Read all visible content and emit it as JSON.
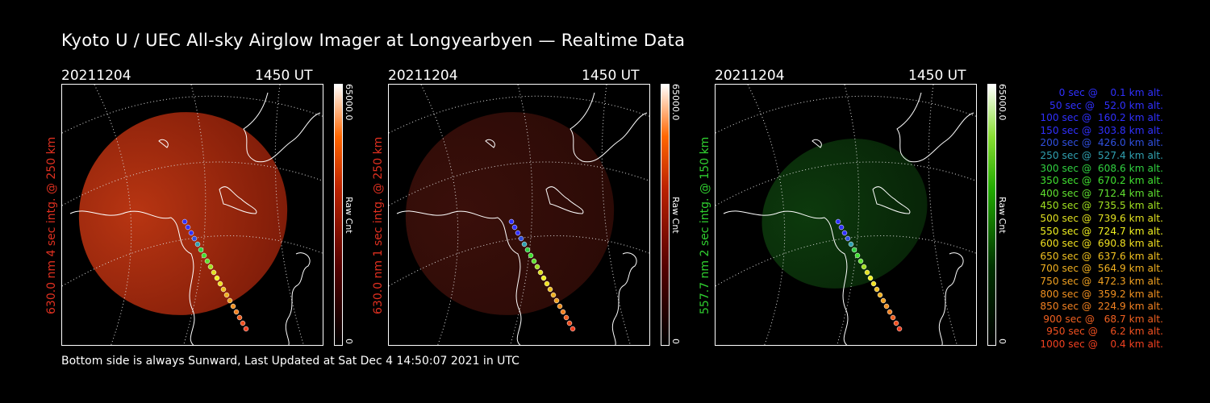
{
  "title": "Kyoto U / UEC All-sky Airglow Imager at Longyearbyen — Realtime Data",
  "footer": "Bottom side is always Sunward, Last Updated at Sat Dec  4 14:50:07 2021 in UTC",
  "panels": [
    {
      "date": "20211204",
      "time": "1450 UT",
      "side_label": "630.0 nm 4 sec intg. @ 250 km",
      "side_color": "#e03020",
      "cbar_top": "65000.0",
      "cbar_unit": "Raw Cnt",
      "cbar_bottom": "0",
      "scheme": "red",
      "intensity": "bright"
    },
    {
      "date": "20211204",
      "time": "1450 UT",
      "side_label": "630.0 nm 1 sec intg. @ 250 km",
      "side_color": "#e03020",
      "cbar_top": "65000.0",
      "cbar_unit": "Raw Cnt",
      "cbar_bottom": "0",
      "scheme": "red",
      "intensity": "dim"
    },
    {
      "date": "20211204",
      "time": "1450 UT",
      "side_label": "557.7 nm 2 sec intg. @ 150 km",
      "side_color": "#30d030",
      "cbar_top": "65000.0",
      "cbar_unit": "Raw Cnt",
      "cbar_bottom": "0",
      "scheme": "green",
      "intensity": "dim"
    }
  ],
  "legend": [
    {
      "text": "   0 sec @    0.1 km alt.",
      "color": "#3030ff"
    },
    {
      "text": "  50 sec @   52.0 km alt.",
      "color": "#3030ff"
    },
    {
      "text": " 100 sec @  160.2 km alt.",
      "color": "#3030ff"
    },
    {
      "text": " 150 sec @  303.8 km alt.",
      "color": "#3030ff"
    },
    {
      "text": " 200 sec @  426.0 km alt.",
      "color": "#3050e0"
    },
    {
      "text": " 250 sec @  527.4 km alt.",
      "color": "#30a0b0"
    },
    {
      "text": " 300 sec @  608.6 km alt.",
      "color": "#30d040"
    },
    {
      "text": " 350 sec @  670.2 km alt.",
      "color": "#40e030"
    },
    {
      "text": " 400 sec @  712.4 km alt.",
      "color": "#60e030"
    },
    {
      "text": " 450 sec @  735.5 km alt.",
      "color": "#a0e020"
    },
    {
      "text": " 500 sec @  739.6 km alt.",
      "color": "#e0e020"
    },
    {
      "text": " 550 sec @  724.7 km alt.",
      "color": "#f0f020"
    },
    {
      "text": " 600 sec @  690.8 km alt.",
      "color": "#f0e020"
    },
    {
      "text": " 650 sec @  637.6 km alt.",
      "color": "#f0c020"
    },
    {
      "text": " 700 sec @  564.9 km alt.",
      "color": "#f0b020"
    },
    {
      "text": " 750 sec @  472.3 km alt.",
      "color": "#f0a020"
    },
    {
      "text": " 800 sec @  359.2 km alt.",
      "color": "#f09020"
    },
    {
      "text": " 850 sec @  224.9 km alt.",
      "color": "#f08020"
    },
    {
      "text": " 900 sec @   68.7 km alt.",
      "color": "#f06020"
    },
    {
      "text": " 950 sec @    6.2 km alt.",
      "color": "#f05020"
    },
    {
      "text": "1000 sec @    0.4 km alt.",
      "color": "#f04020"
    }
  ],
  "trajectory_colors": [
    "#3030ff",
    "#3030ff",
    "#3030ff",
    "#3050e0",
    "#30a0b0",
    "#30d040",
    "#40e030",
    "#60e030",
    "#a0e020",
    "#e0e020",
    "#f0f020",
    "#f0e020",
    "#f0c020",
    "#f0b020",
    "#f0a020",
    "#f09020",
    "#f08020",
    "#f06020",
    "#f05020",
    "#f04020"
  ]
}
